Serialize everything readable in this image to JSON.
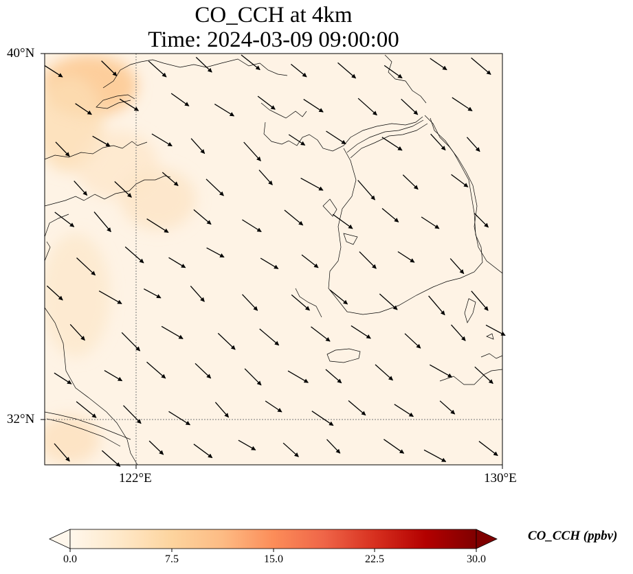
{
  "title": {
    "line1": "CO_CCH at 4km",
    "line2": "Time: 2024-03-09 09:00:00"
  },
  "map": {
    "lat_labels": [
      "40°N",
      "32°N"
    ],
    "lon_labels": [
      "122°E",
      "130°E"
    ],
    "gridline_style": "dotted",
    "extent_lon": [
      120,
      130
    ],
    "extent_lat": [
      31,
      40
    ],
    "field_colormap": "OrRd",
    "vector_field": "wind arrows pointing to the south-east"
  },
  "colorbar": {
    "label": "CO_CCH (ppbv)",
    "ticks": [
      "0.0",
      "7.5",
      "15.0",
      "22.5",
      "30.0"
    ],
    "range": [
      0,
      30
    ],
    "extend": "both",
    "colors": [
      "#fff7ec",
      "#fee8c8",
      "#fdd49e",
      "#fdbb84",
      "#fc8d59",
      "#ef6548",
      "#d7301f",
      "#b30000",
      "#7f0000"
    ]
  }
}
